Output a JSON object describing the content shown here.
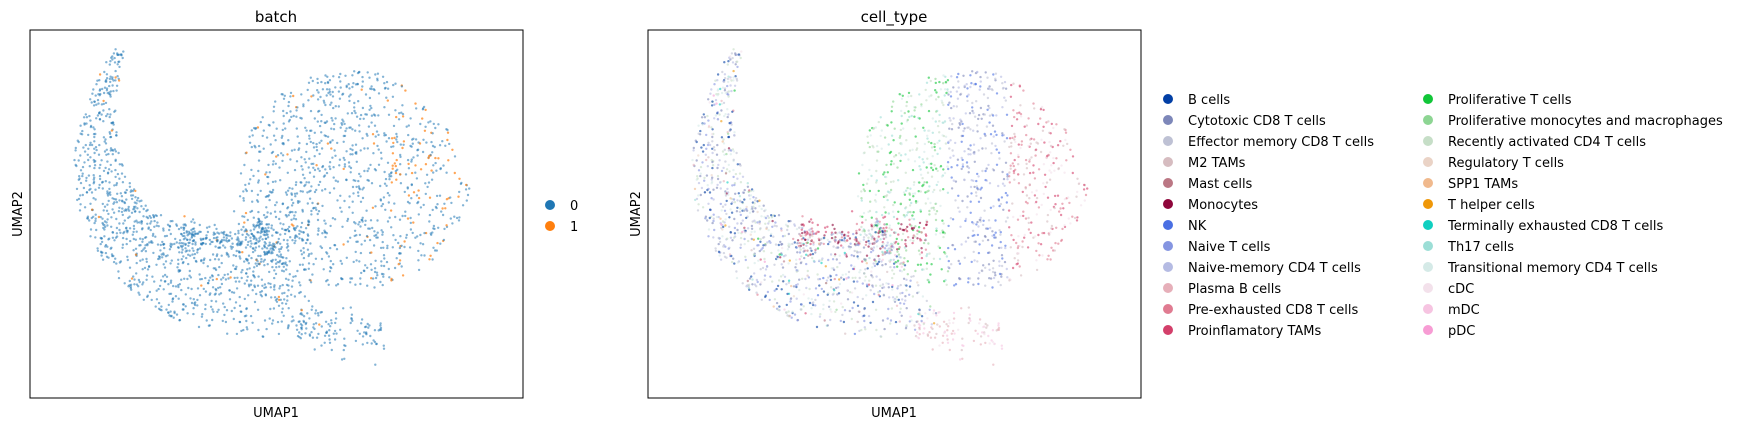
{
  "chart_data": [
    {
      "type": "scatter",
      "title": "batch",
      "xlabel": "UMAP1",
      "ylabel": "UMAP2",
      "grid": false,
      "legend_position": "right",
      "categories": [
        "0",
        "1"
      ],
      "colors": [
        "#1f77b4",
        "#ff7f0e"
      ]
    },
    {
      "type": "scatter",
      "title": "cell_type",
      "xlabel": "UMAP1",
      "ylabel": "UMAP2",
      "grid": false,
      "legend_position": "right",
      "categories": [
        "B cells",
        "Cytotoxic CD8 T cells",
        "Effector memory CD8 T cells",
        "M2 TAMs",
        "Mast cells",
        "Monocytes",
        "NK",
        "Naive T cells",
        "Naive-memory CD4 T cells",
        "Plasma B cells",
        "Pre-exhausted CD8 T cells",
        "Proinflamatory TAMs",
        "Proliferative T cells",
        "Proliferative monocytes and macrophages",
        "Recently activated CD4 T cells",
        "Regulatory T cells",
        "SPP1 TAMs",
        "T helper cells",
        "Terminally exhausted CD8 T cells",
        "Th17 cells",
        "Transitional memory CD4 T cells",
        "cDC",
        "mDC",
        "pDC"
      ],
      "colors": [
        "#023fa5",
        "#7d87b9",
        "#bec1d4",
        "#d6bcc0",
        "#bb7784",
        "#8e063b",
        "#4a6fe3",
        "#8595e1",
        "#b5bbe3",
        "#e6afb9",
        "#e07b91",
        "#d33f6a",
        "#11c638",
        "#8dd593",
        "#c6dec7",
        "#ead3c6",
        "#f0b98d",
        "#ef9708",
        "#0fcfc0",
        "#9cded6",
        "#d5eae7",
        "#f3e1eb",
        "#f6c4e1",
        "#f79cd4"
      ]
    }
  ]
}
